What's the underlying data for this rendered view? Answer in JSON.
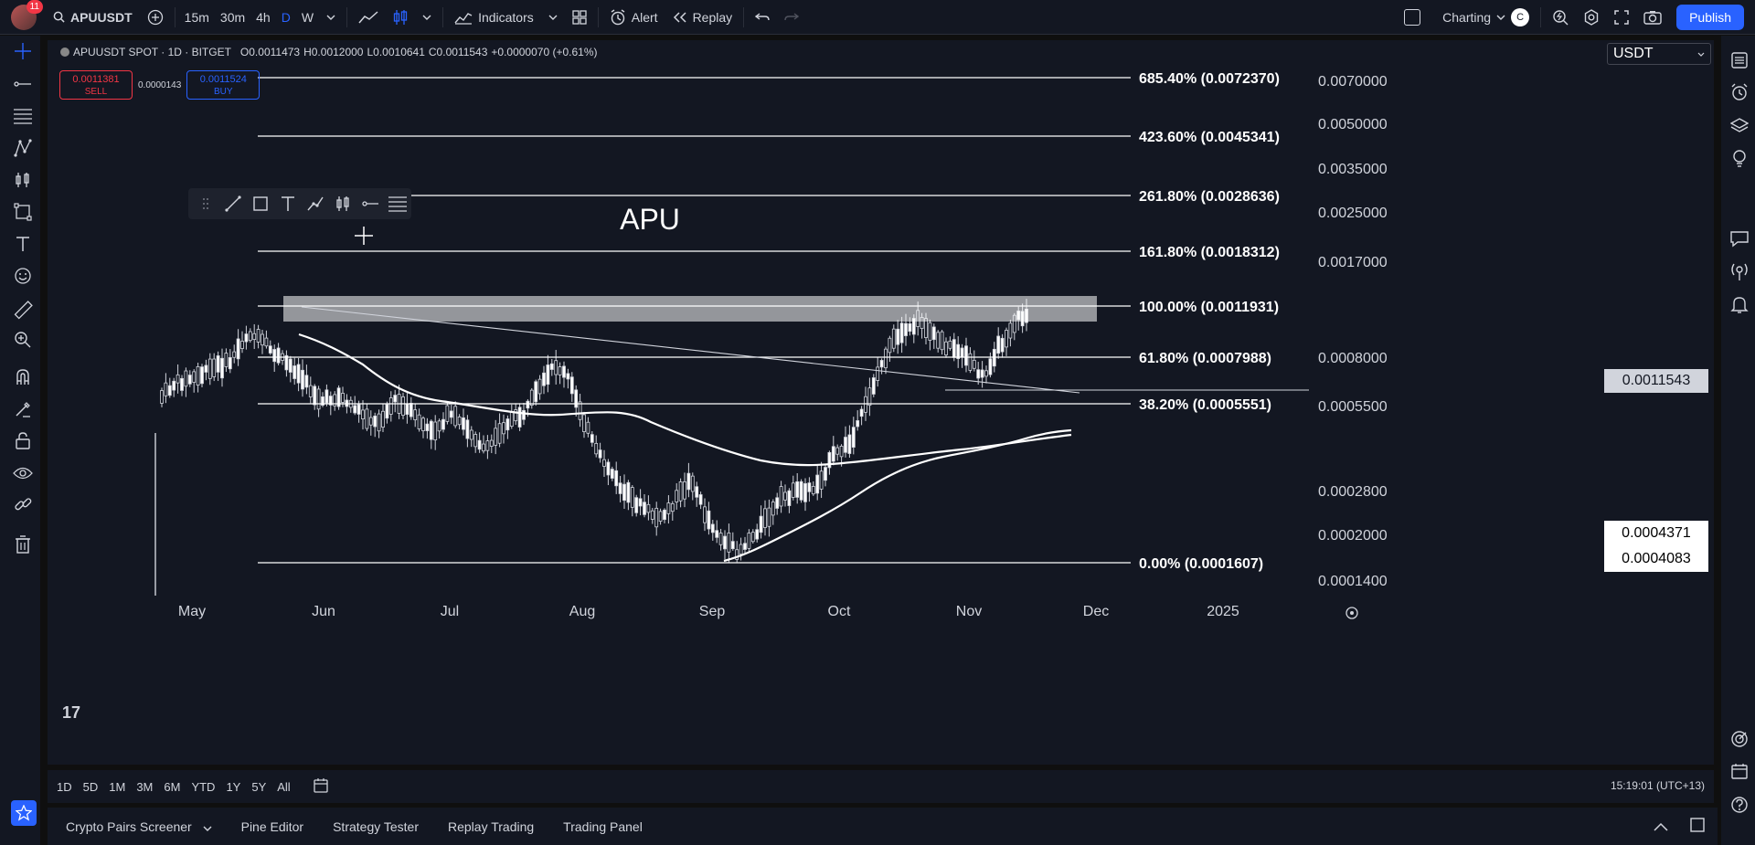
{
  "topbar": {
    "notification_count": "11",
    "symbol": "APUUSDT",
    "timeframes": [
      "15m",
      "30m",
      "4h",
      "D",
      "W"
    ],
    "active_timeframe": "D",
    "indicators_label": "Indicators",
    "alert_label": "Alert",
    "replay_label": "Replay",
    "layout_label": "Charting",
    "layout_initial": "C",
    "publish_label": "Publish"
  },
  "legend": {
    "title": "APUUSDT SPOT · 1D · BITGET",
    "open": "O0.0011473",
    "high": "H0.0012000",
    "low": "L0.0010641",
    "close": "C0.0011543",
    "change": "+0.0000070 (+0.61%)"
  },
  "trade": {
    "sell_price": "0.0011381",
    "sell_label": "SELL",
    "spread": "0.0000143",
    "buy_price": "0.0011524",
    "buy_label": "BUY"
  },
  "currency": "USDT",
  "annotation_text": "APU",
  "fib_levels": [
    {
      "label": "685.40% (0.0072370)"
    },
    {
      "label": "423.60% (0.0045341)"
    },
    {
      "label": "261.80% (0.0028636)"
    },
    {
      "label": "161.80% (0.0018312)"
    },
    {
      "label": "100.00% (0.0011931)"
    },
    {
      "label": "61.80% (0.0007988)"
    },
    {
      "label": "38.20% (0.0005551)"
    },
    {
      "label": "0.00% (0.0001607)"
    }
  ],
  "price_axis": [
    "0.0070000",
    "0.0050000",
    "0.0035000",
    "0.0025000",
    "0.0017000",
    "0.0008000",
    "0.0005500",
    "0.0002800",
    "0.0002000",
    "0.0001400"
  ],
  "price_tags": {
    "last": "0.0011543",
    "ma_1": "0.0004371",
    "ma_2": "0.0004083"
  },
  "time_axis": [
    "May",
    "Jun",
    "Jul",
    "Aug",
    "Sep",
    "Oct",
    "Nov",
    "Dec",
    "2025"
  ],
  "ranges": [
    "1D",
    "5D",
    "1M",
    "3M",
    "6M",
    "YTD",
    "1Y",
    "5Y",
    "All"
  ],
  "clock": "15:19:01 (UTC+13)",
  "panels": [
    "Crypto Pairs Screener",
    "Pine Editor",
    "Strategy Tester",
    "Replay Trading",
    "Trading Panel"
  ],
  "logo_text": "17",
  "colors": {
    "background": "#131722",
    "accent": "#2962ff",
    "sell": "#f23645",
    "lines": "#ffffff"
  }
}
